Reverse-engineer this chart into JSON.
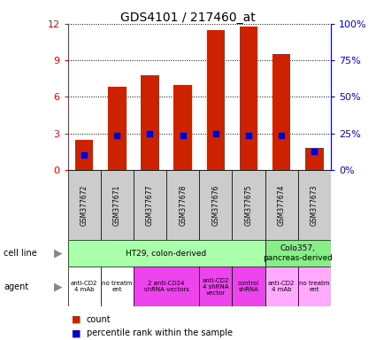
{
  "title": "GDS4101 / 217460_at",
  "samples": [
    "GSM377672",
    "GSM377671",
    "GSM377677",
    "GSM377678",
    "GSM377676",
    "GSM377675",
    "GSM377674",
    "GSM377673"
  ],
  "counts": [
    2.5,
    6.8,
    7.8,
    7.0,
    11.5,
    11.8,
    9.5,
    1.8
  ],
  "percentile_ranks": [
    1.2,
    2.8,
    3.0,
    2.8,
    3.0,
    2.8,
    2.8,
    1.5
  ],
  "ylim_left": [
    0,
    12
  ],
  "ylim_right": [
    0,
    100
  ],
  "yticks_left": [
    0,
    3,
    6,
    9,
    12
  ],
  "yticks_right": [
    0,
    25,
    50,
    75,
    100
  ],
  "yticklabels_right": [
    "0%",
    "25%",
    "50%",
    "75%",
    "100%"
  ],
  "bar_color": "#cc2200",
  "percentile_color": "#0000cc",
  "sample_row_color": "#cccccc",
  "cell_line_ht29_color": "#aaffaa",
  "cell_line_colo_color": "#88ee88",
  "agent_white_color": "#ffffff",
  "agent_pink_color": "#ee44ee",
  "agent_lightpink_color": "#ffaaff",
  "legend_count_color": "#cc2200",
  "legend_percentile_color": "#0000cc"
}
